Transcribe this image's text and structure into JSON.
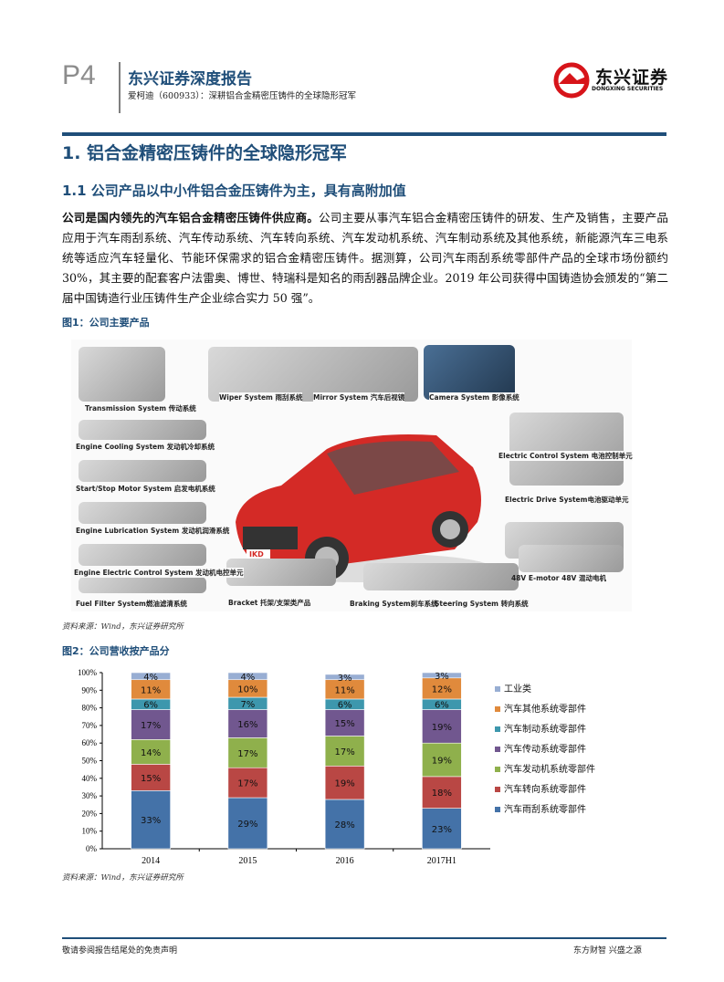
{
  "header": {
    "page": "P4",
    "report_title": "东兴证券深度报告",
    "subtitle": "爱柯迪（600933）：深耕铝合金精密压铸件的全球隐形冠军",
    "logo_cn": "东兴证券",
    "logo_en": "DONGXING SECURITIES",
    "brand_color": "#1f4e79"
  },
  "section": {
    "h1": "1. 铝合金精密压铸件的全球隐形冠军",
    "h2": "1.1 公司产品以中小件铝合金压铸件为主，具有高附加值",
    "lead": "公司是国内领先的汽车铝合金精密压铸件供应商。",
    "body": "公司主要从事汽车铝合金精密压铸件的研发、生产及销售，主要产品应用于汽车雨刮系统、汽车传动系统、汽车转向系统、汽车发动机系统、汽车制动系统及其他系统，新能源汽车三电系统等适应汽车轻量化、节能环保需求的铝合金精密压铸件。据测算，公司汽车雨刮系统零部件产品的全球市场份额约 30%，其主要的配套客户法雷奥、博世、特瑞科是知名的雨刮器品牌企业。2019 年公司获得中国铸造协会颁发的“第二届中国铸造行业压铸件生产企业综合实力 50 强”。"
  },
  "figure1": {
    "caption": "图1：公司主要产品",
    "source": "资料来源：Wind，东兴证券研究所",
    "labels": [
      "Transmission System 传动系统",
      "Engine Cooling System 发动机冷却系统",
      "Start/Stop Motor System 启发电机系统",
      "Engine Lubrication System 发动机润滑系统",
      "Engine Electric Control System 发动机电控单元",
      "Fuel Filter System燃油滤清系统",
      "Wiper System 雨刮系统",
      "Mirror System 汽车后视镜",
      "Camera System 影像系统",
      "Electric  Control System 电池控制单元",
      "Electric Drive System电池驱动单元",
      "48V E-motor  48V 混动电机",
      "Bracket  托架/支架类产品",
      "Braking System刹车系统",
      "Steering  System  转向系统"
    ],
    "car_logo": "IKD"
  },
  "figure2": {
    "caption": "图2：公司营收按产品分",
    "source": "资料来源：Wind，东兴证券研究所"
  },
  "chart_data": {
    "type": "bar",
    "stacked": true,
    "categories": [
      "2014",
      "2015",
      "2016",
      "2017H1"
    ],
    "ylim": [
      0,
      100
    ],
    "yticks": [
      "0%",
      "10%",
      "20%",
      "30%",
      "40%",
      "50%",
      "60%",
      "70%",
      "80%",
      "90%",
      "100%"
    ],
    "legend": "right",
    "series": [
      {
        "name": "汽车雨刮系统零部件",
        "color": "#4472a8",
        "values": [
          33,
          29,
          28,
          23
        ]
      },
      {
        "name": "汽车转向系统零部件",
        "color": "#b94744",
        "values": [
          15,
          17,
          19,
          18
        ]
      },
      {
        "name": "汽车发动机系统零部件",
        "color": "#8fb04c",
        "values": [
          14,
          17,
          17,
          19
        ]
      },
      {
        "name": "汽车传动系统零部件",
        "color": "#71578f",
        "values": [
          17,
          16,
          15,
          19
        ]
      },
      {
        "name": "汽车制动系统零部件",
        "color": "#3d97ad",
        "values": [
          6,
          7,
          6,
          6
        ]
      },
      {
        "name": "汽车其他系统零部件",
        "color": "#e08a3c",
        "values": [
          11,
          10,
          11,
          12
        ]
      },
      {
        "name": "工业类",
        "color": "#98aed3",
        "values": [
          4,
          4,
          3,
          3
        ]
      }
    ]
  },
  "footer": {
    "left": "敬请参阅报告结尾处的免责声明",
    "right": "东方财智 兴盛之源"
  }
}
